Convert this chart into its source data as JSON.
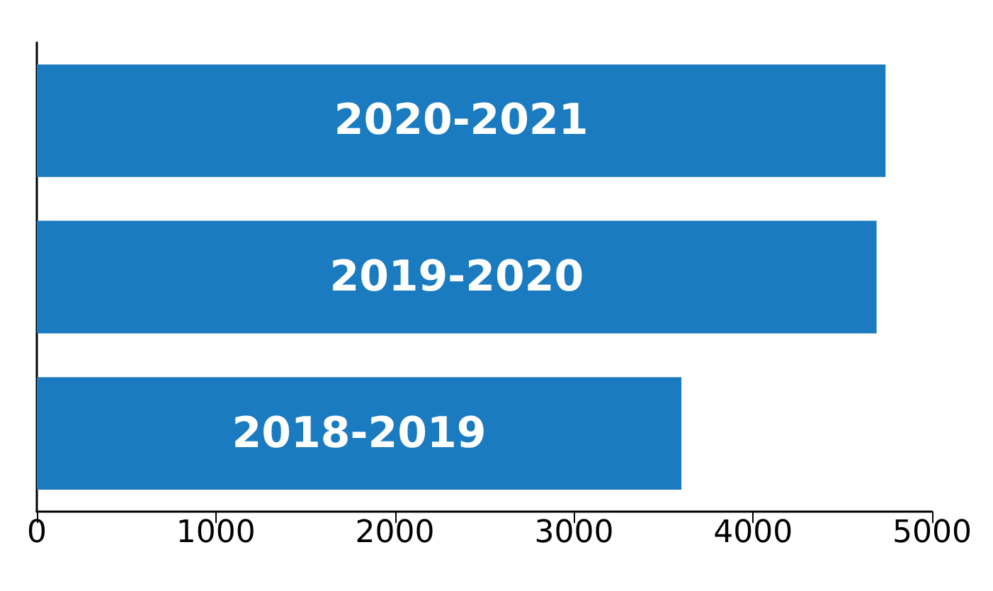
{
  "chart_data": {
    "type": "bar",
    "orientation": "horizontal",
    "categories": [
      "2020-2021",
      "2019-2020",
      "2018-2019"
    ],
    "values": [
      4740,
      4690,
      3600
    ],
    "color": "#1a7bc0",
    "xlim": [
      0,
      5000
    ],
    "xticks": [
      0,
      1000,
      2000,
      3000,
      4000,
      5000
    ],
    "grid": false,
    "tick_labels": "x"
  }
}
